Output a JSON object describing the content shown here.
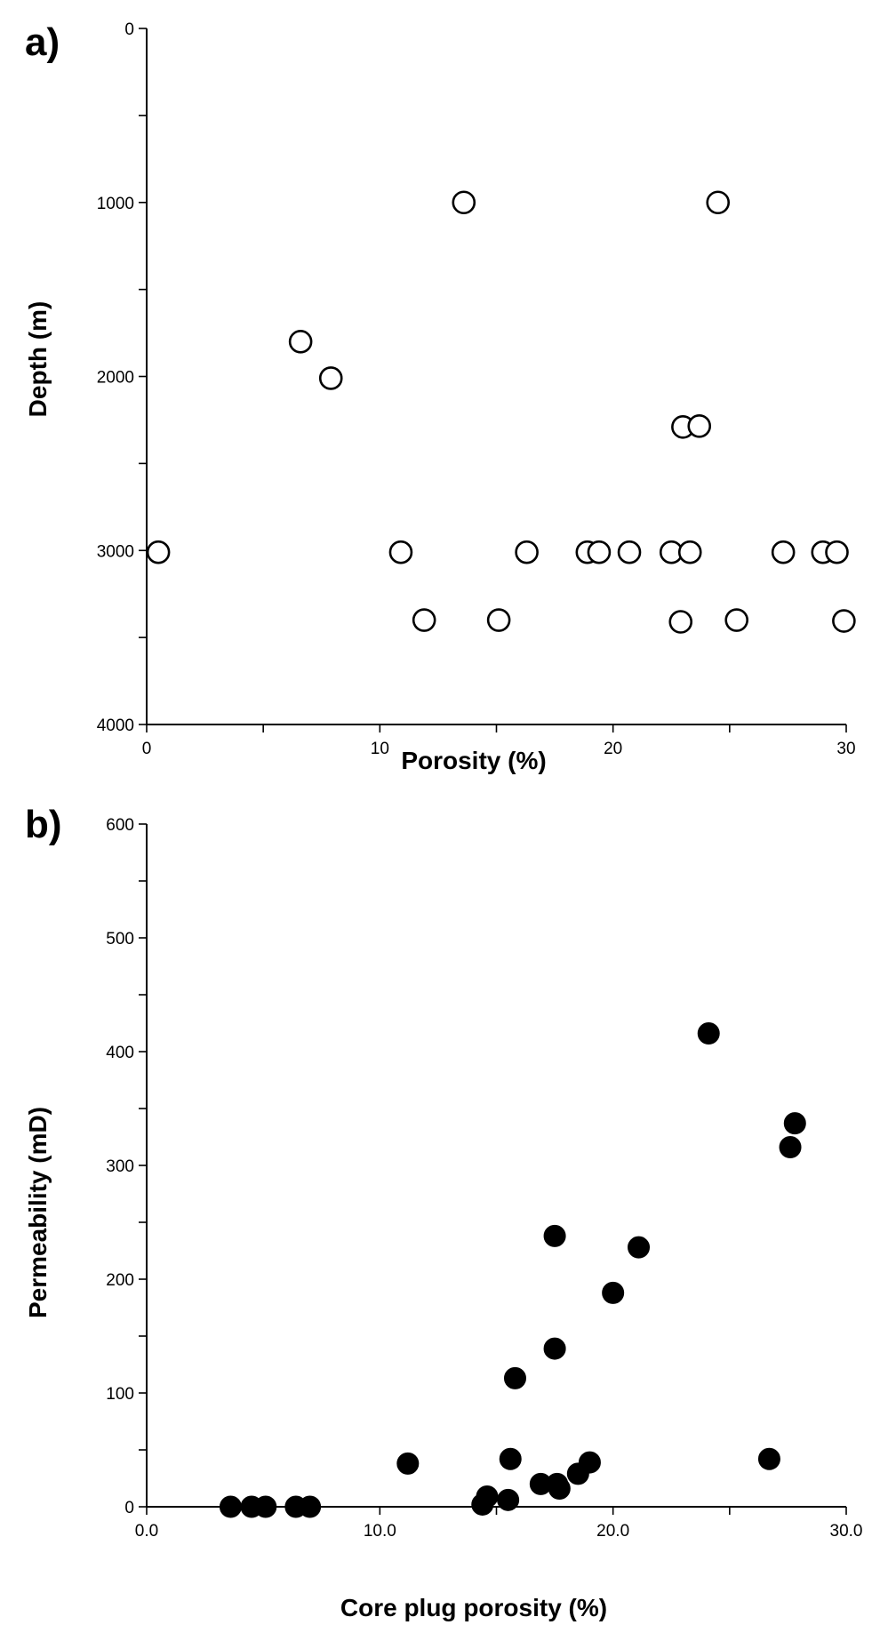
{
  "chart_data": [
    {
      "panel": "a)",
      "type": "scatter",
      "xlabel": "Porosity (%)",
      "ylabel": "Depth (m)",
      "xlim": [
        0,
        30
      ],
      "ylim": [
        0,
        4000
      ],
      "y_inverted": true,
      "x_ticks": [
        "0",
        "10",
        "20",
        "30"
      ],
      "y_ticks": [
        "0",
        "1000",
        "2000",
        "3000",
        "4000"
      ],
      "marker": "open-circle",
      "marker_color": "#000000",
      "points": [
        {
          "x": 13.6,
          "y": 1000
        },
        {
          "x": 24.5,
          "y": 1000
        },
        {
          "x": 6.6,
          "y": 1800
        },
        {
          "x": 7.9,
          "y": 2010
        },
        {
          "x": 23.0,
          "y": 2290
        },
        {
          "x": 23.7,
          "y": 2285
        },
        {
          "x": 0.5,
          "y": 3010
        },
        {
          "x": 10.9,
          "y": 3010
        },
        {
          "x": 16.3,
          "y": 3010
        },
        {
          "x": 18.9,
          "y": 3010
        },
        {
          "x": 19.4,
          "y": 3010
        },
        {
          "x": 20.7,
          "y": 3010
        },
        {
          "x": 22.5,
          "y": 3010
        },
        {
          "x": 23.3,
          "y": 3010
        },
        {
          "x": 27.3,
          "y": 3010
        },
        {
          "x": 29.0,
          "y": 3010
        },
        {
          "x": 29.6,
          "y": 3010
        },
        {
          "x": 11.9,
          "y": 3400
        },
        {
          "x": 15.1,
          "y": 3400
        },
        {
          "x": 22.9,
          "y": 3410
        },
        {
          "x": 25.3,
          "y": 3400
        },
        {
          "x": 29.9,
          "y": 3405
        }
      ]
    },
    {
      "panel": "b)",
      "type": "scatter",
      "xlabel": "Core plug porosity (%)",
      "ylabel": "Permeability (mD)",
      "xlim": [
        0,
        30
      ],
      "ylim": [
        0,
        600
      ],
      "x_ticks": [
        "0.0",
        "10.0",
        "20.0",
        "30.0"
      ],
      "y_ticks": [
        "0",
        "100",
        "200",
        "300",
        "400",
        "500",
        "600"
      ],
      "marker": "filled-circle",
      "marker_color": "#000000",
      "points": [
        {
          "x": 3.6,
          "y": 0
        },
        {
          "x": 4.5,
          "y": 0
        },
        {
          "x": 5.1,
          "y": 0
        },
        {
          "x": 6.4,
          "y": 0
        },
        {
          "x": 7.0,
          "y": 0
        },
        {
          "x": 11.2,
          "y": 38
        },
        {
          "x": 14.4,
          "y": 2
        },
        {
          "x": 14.6,
          "y": 9
        },
        {
          "x": 15.5,
          "y": 6
        },
        {
          "x": 15.6,
          "y": 42
        },
        {
          "x": 15.8,
          "y": 113
        },
        {
          "x": 16.9,
          "y": 20
        },
        {
          "x": 17.6,
          "y": 20
        },
        {
          "x": 17.7,
          "y": 16
        },
        {
          "x": 17.5,
          "y": 139
        },
        {
          "x": 17.5,
          "y": 238
        },
        {
          "x": 18.5,
          "y": 29
        },
        {
          "x": 19.0,
          "y": 39
        },
        {
          "x": 20.0,
          "y": 188
        },
        {
          "x": 21.1,
          "y": 228
        },
        {
          "x": 24.1,
          "y": 416
        },
        {
          "x": 26.7,
          "y": 42
        },
        {
          "x": 27.6,
          "y": 316
        },
        {
          "x": 27.8,
          "y": 337
        }
      ]
    }
  ]
}
